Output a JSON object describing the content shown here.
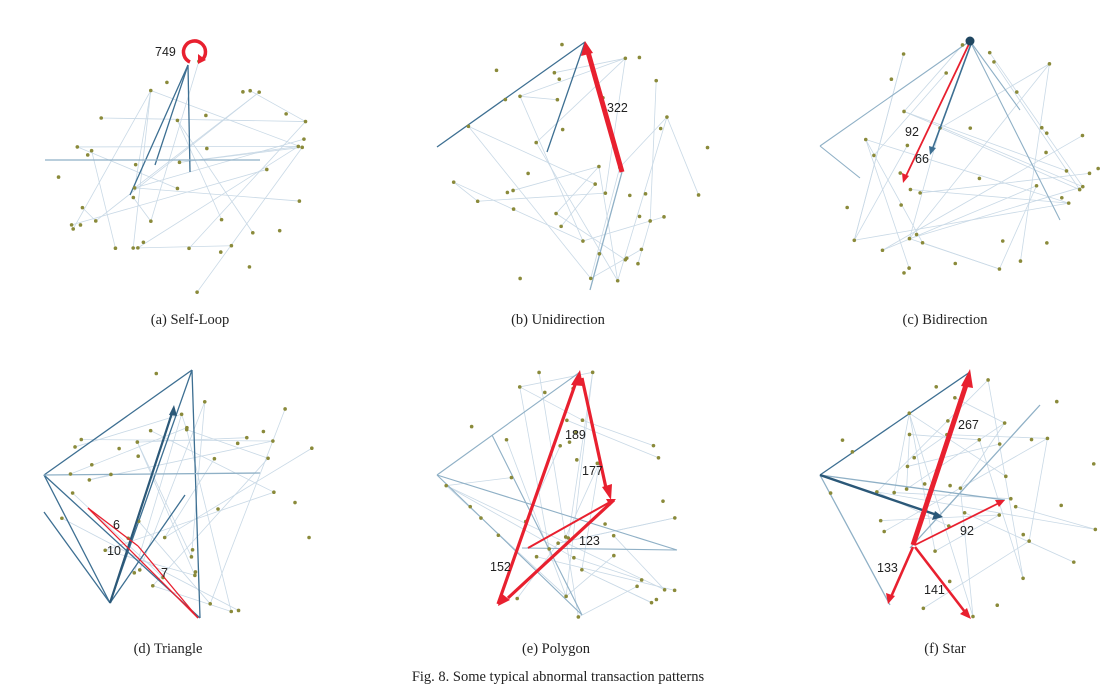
{
  "figure_caption": "Fig. 8.  Some typical abnormal transaction patterns",
  "colors": {
    "red": "#e8202f",
    "blue": "#3d6f92",
    "faint": "#b9cfdf",
    "node": "#8a8a3a"
  },
  "panels": [
    {
      "caption": "(a) Self-Loop",
      "labels": [
        "749"
      ]
    },
    {
      "caption": "(b) Unidirection",
      "labels": [
        "322"
      ]
    },
    {
      "caption": "(c) Bidirection",
      "labels": [
        "92",
        "66"
      ]
    },
    {
      "caption": "(d) Triangle",
      "labels": [
        "6",
        "10",
        "7"
      ]
    },
    {
      "caption": "(e) Polygon",
      "labels": [
        "189",
        "177",
        "152",
        "123"
      ]
    },
    {
      "caption": "(f) Star",
      "labels": [
        "267",
        "92",
        "133",
        "141"
      ]
    }
  ]
}
